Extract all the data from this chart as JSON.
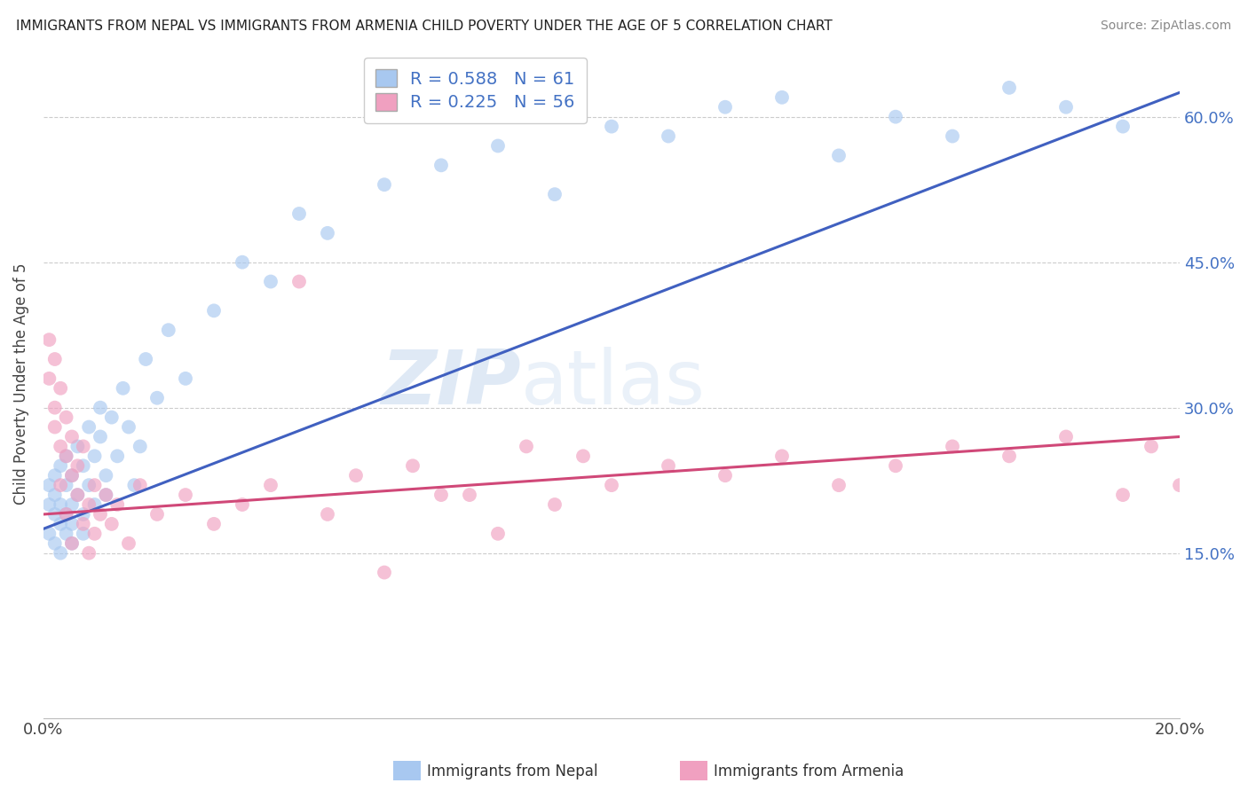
{
  "title": "IMMIGRANTS FROM NEPAL VS IMMIGRANTS FROM ARMENIA CHILD POVERTY UNDER THE AGE OF 5 CORRELATION CHART",
  "source": "Source: ZipAtlas.com",
  "ylabel": "Child Poverty Under the Age of 5",
  "ytick_labels": [
    "15.0%",
    "30.0%",
    "45.0%",
    "60.0%"
  ],
  "ytick_values": [
    0.15,
    0.3,
    0.45,
    0.6
  ],
  "xlim": [
    0.0,
    0.2
  ],
  "ylim": [
    -0.02,
    0.67
  ],
  "nepal_color": "#A8C8F0",
  "armenia_color": "#F0A0C0",
  "nepal_line_color": "#4060C0",
  "armenia_line_color": "#D04878",
  "nepal_R": 0.588,
  "nepal_N": 61,
  "armenia_R": 0.225,
  "armenia_N": 56,
  "nepal_scatter_x": [
    0.001,
    0.001,
    0.001,
    0.002,
    0.002,
    0.002,
    0.002,
    0.003,
    0.003,
    0.003,
    0.003,
    0.004,
    0.004,
    0.004,
    0.004,
    0.005,
    0.005,
    0.005,
    0.005,
    0.006,
    0.006,
    0.007,
    0.007,
    0.007,
    0.008,
    0.008,
    0.009,
    0.009,
    0.01,
    0.01,
    0.011,
    0.011,
    0.012,
    0.013,
    0.014,
    0.015,
    0.016,
    0.017,
    0.018,
    0.02,
    0.022,
    0.025,
    0.03,
    0.035,
    0.04,
    0.045,
    0.05,
    0.06,
    0.07,
    0.08,
    0.09,
    0.1,
    0.11,
    0.12,
    0.13,
    0.14,
    0.15,
    0.16,
    0.17,
    0.18,
    0.19
  ],
  "nepal_scatter_y": [
    0.2,
    0.22,
    0.17,
    0.19,
    0.23,
    0.16,
    0.21,
    0.18,
    0.2,
    0.15,
    0.24,
    0.19,
    0.17,
    0.22,
    0.25,
    0.2,
    0.16,
    0.23,
    0.18,
    0.21,
    0.26,
    0.19,
    0.24,
    0.17,
    0.28,
    0.22,
    0.25,
    0.2,
    0.3,
    0.27,
    0.23,
    0.21,
    0.29,
    0.25,
    0.32,
    0.28,
    0.22,
    0.26,
    0.35,
    0.31,
    0.38,
    0.33,
    0.4,
    0.45,
    0.43,
    0.5,
    0.48,
    0.53,
    0.55,
    0.57,
    0.52,
    0.59,
    0.58,
    0.61,
    0.62,
    0.56,
    0.6,
    0.58,
    0.63,
    0.61,
    0.59
  ],
  "armenia_scatter_x": [
    0.001,
    0.001,
    0.002,
    0.002,
    0.002,
    0.003,
    0.003,
    0.003,
    0.004,
    0.004,
    0.004,
    0.005,
    0.005,
    0.005,
    0.006,
    0.006,
    0.007,
    0.007,
    0.008,
    0.008,
    0.009,
    0.009,
    0.01,
    0.011,
    0.012,
    0.013,
    0.015,
    0.017,
    0.02,
    0.025,
    0.03,
    0.035,
    0.04,
    0.05,
    0.06,
    0.07,
    0.08,
    0.09,
    0.1,
    0.11,
    0.12,
    0.13,
    0.14,
    0.15,
    0.16,
    0.17,
    0.18,
    0.19,
    0.195,
    0.2,
    0.045,
    0.055,
    0.065,
    0.075,
    0.085,
    0.095
  ],
  "armenia_scatter_y": [
    0.37,
    0.33,
    0.3,
    0.28,
    0.35,
    0.26,
    0.32,
    0.22,
    0.25,
    0.29,
    0.19,
    0.23,
    0.27,
    0.16,
    0.21,
    0.24,
    0.18,
    0.26,
    0.2,
    0.15,
    0.22,
    0.17,
    0.19,
    0.21,
    0.18,
    0.2,
    0.16,
    0.22,
    0.19,
    0.21,
    0.18,
    0.2,
    0.22,
    0.19,
    0.13,
    0.21,
    0.17,
    0.2,
    0.22,
    0.24,
    0.23,
    0.25,
    0.22,
    0.24,
    0.26,
    0.25,
    0.27,
    0.21,
    0.26,
    0.22,
    0.43,
    0.23,
    0.24,
    0.21,
    0.26,
    0.25
  ]
}
